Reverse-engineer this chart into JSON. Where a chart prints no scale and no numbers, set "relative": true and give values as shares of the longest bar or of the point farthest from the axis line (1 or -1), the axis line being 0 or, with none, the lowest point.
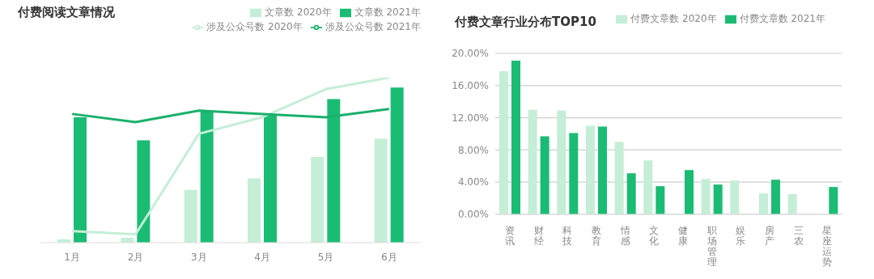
{
  "chart_data": [
    {
      "type": "bar",
      "title": "付费阅读文章情况",
      "relative": true,
      "legend": "top right",
      "categories": [
        "1月",
        "2月",
        "3月",
        "4月",
        "5月",
        "6月"
      ],
      "series": [
        {
          "name": "文章数 2020年",
          "color": "#c5eed6",
          "values": [
            0.02,
            0.03,
            0.32,
            0.39,
            0.52,
            0.63
          ]
        },
        {
          "name": "文章数 2021年",
          "color": "#1abc74",
          "values": [
            0.76,
            0.62,
            0.8,
            0.78,
            0.87,
            0.94
          ]
        },
        {
          "name": "涉及公众号数 2020年",
          "type": "line",
          "color": "#c5eed6",
          "values": [
            0.07,
            0.05,
            0.66,
            0.76,
            0.93,
            1
          ]
        },
        {
          "name": "涉及公众号数 2021年",
          "type": "line",
          "color": "#1ab06c",
          "values": [
            0.78,
            0.73,
            0.8,
            0.78,
            0.76,
            0.81
          ]
        }
      ],
      "grid": false,
      "marker": "none"
    },
    {
      "type": "bar",
      "title": "付费文章行业分布TOP10",
      "legend": "top right",
      "grid": "y",
      "categories": [
        "资讯",
        "财经",
        "科技",
        "教育",
        "情感",
        "文化",
        "健康",
        "职场管理",
        "娱乐",
        "房产",
        "三农",
        "星座运势"
      ],
      "ylim": [
        0,
        20
      ],
      "yticks": [
        {
          "value": 0,
          "label": "0.00%"
        },
        {
          "value": 4,
          "label": "4.00%"
        },
        {
          "value": 8,
          "label": "8.00%"
        },
        {
          "value": 12,
          "label": "12.00%"
        },
        {
          "value": 16,
          "label": "16.00%"
        },
        {
          "value": 20,
          "label": "20.00%"
        }
      ],
      "series": [
        {
          "name": "付费文章数 2020年",
          "color": "#c5eed6",
          "values": [
            17.8,
            13.0,
            12.9,
            11.0,
            9.0,
            6.7,
            null,
            4.4,
            4.2,
            2.6,
            2.5,
            null
          ]
        },
        {
          "name": "付费文章数 2021年",
          "color": "#1abc74",
          "values": [
            19.1,
            9.7,
            10.1,
            10.9,
            5.1,
            3.5,
            5.5,
            3.7,
            null,
            4.3,
            null,
            3.4
          ]
        }
      ]
    }
  ]
}
